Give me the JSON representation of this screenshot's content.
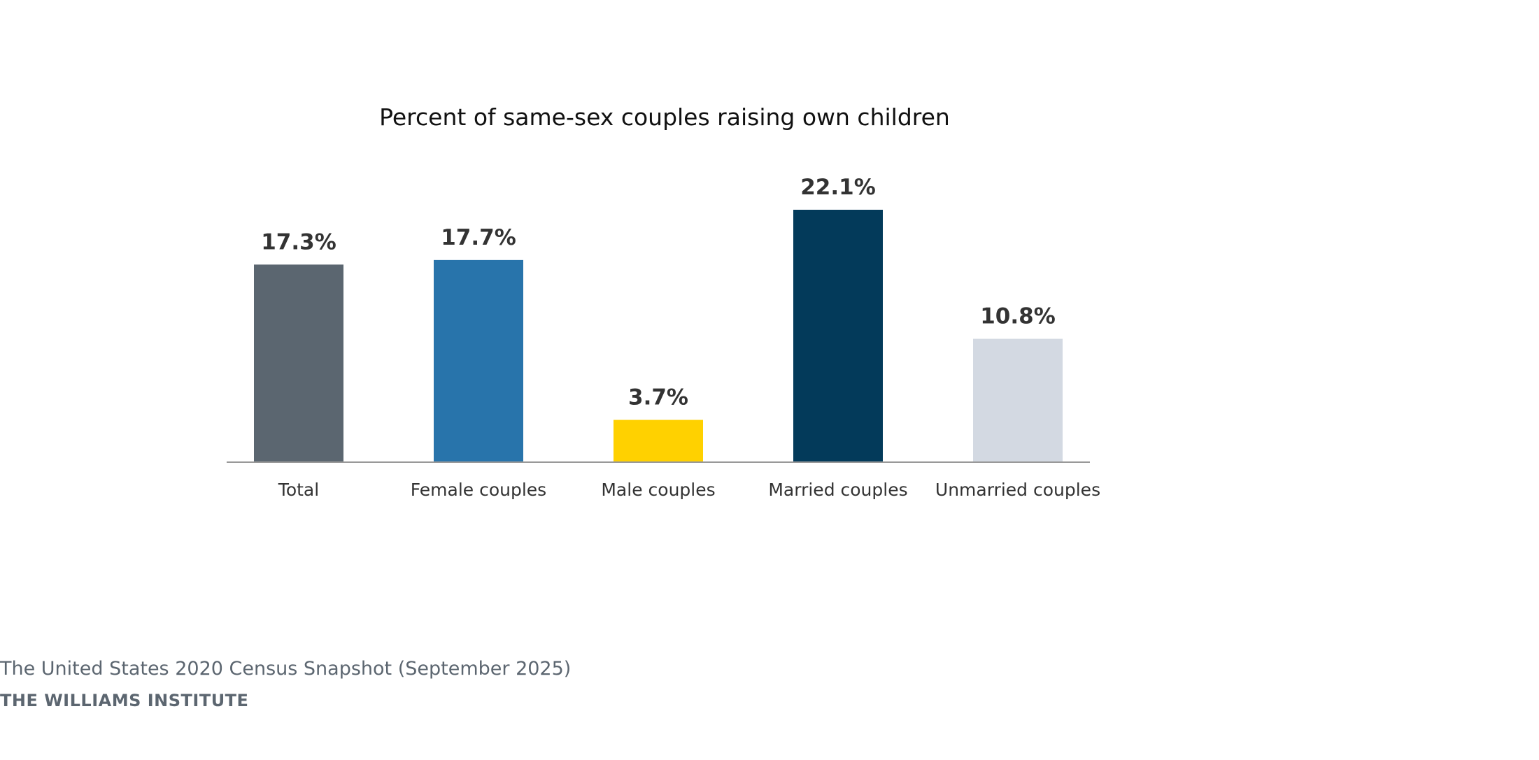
{
  "chart_data": {
    "type": "bar",
    "title": "Percent of same-sex couples raising own children",
    "xlabel": "",
    "ylabel": "",
    "categories": [
      "Total",
      "Female couples",
      "Male couples",
      "Married couples",
      "Unmarried couples"
    ],
    "values": [
      17.3,
      17.7,
      3.7,
      22.1,
      10.8
    ],
    "value_labels": [
      "17.3%",
      "17.7%",
      "3.7%",
      "22.1%",
      "10.8%"
    ],
    "colors": [
      "#5b6670",
      "#2874ab",
      "#ffd100",
      "#033a5a",
      "#d3d9e2"
    ],
    "ylim": [
      0,
      22.1
    ],
    "grid": false,
    "legend": "none"
  },
  "footer": {
    "source": "The United States 2020 Census Snapshot (September 2025)",
    "org": "THE WILLIAMS INSTITUTE"
  },
  "colors": {
    "axis": "#999999",
    "label_text": "#333333",
    "title_text": "#111111",
    "footer_text": "#5c6670"
  }
}
